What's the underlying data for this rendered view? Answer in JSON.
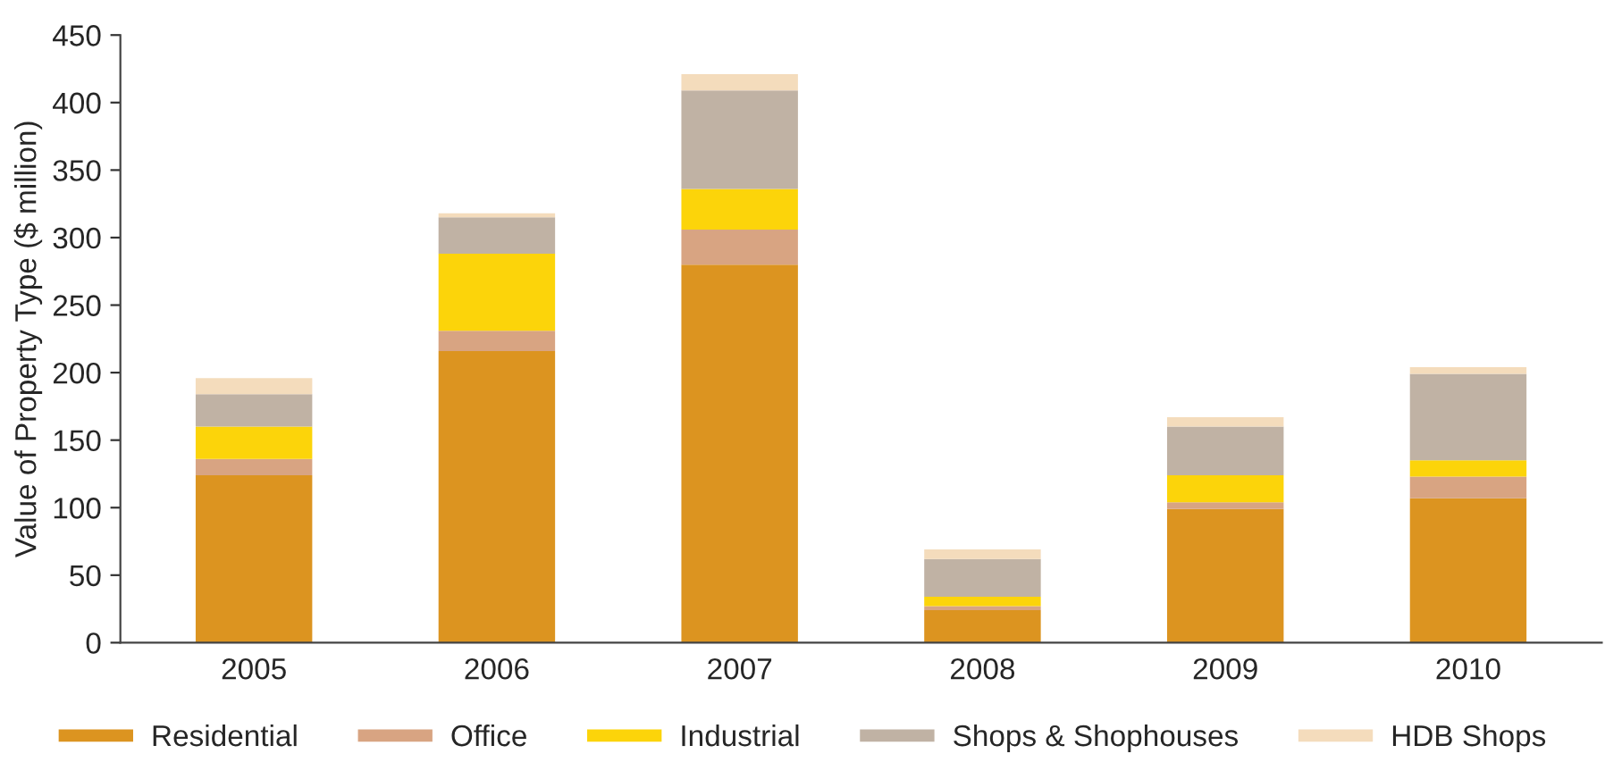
{
  "chart_data": {
    "type": "bar",
    "stacked": true,
    "ylabel": "Value of Property Type ($ million)",
    "categories": [
      "2005",
      "2006",
      "2007",
      "2008",
      "2009",
      "2010"
    ],
    "series": [
      {
        "name": "Residential",
        "color": "#dc9420",
        "values": [
          124,
          216,
          280,
          24,
          99,
          107
        ]
      },
      {
        "name": "Office",
        "color": "#d8a482",
        "values": [
          12,
          15,
          26,
          3,
          5,
          16
        ]
      },
      {
        "name": "Industrial",
        "color": "#fcd40a",
        "values": [
          24,
          57,
          30,
          7,
          20,
          12
        ]
      },
      {
        "name": "Shops & Shophouses",
        "color": "#c0b2a4",
        "values": [
          24,
          27,
          73,
          28,
          36,
          64
        ]
      },
      {
        "name": "HDB Shops",
        "color": "#f4dcbc",
        "values": [
          12,
          3,
          12,
          7,
          7,
          5
        ]
      }
    ],
    "ylim": [
      0,
      450
    ],
    "yticks": [
      0,
      50,
      100,
      150,
      200,
      250,
      300,
      350,
      400,
      450
    ],
    "grid": false,
    "legend": "bottom"
  }
}
